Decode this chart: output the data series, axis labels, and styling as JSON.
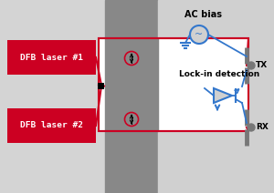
{
  "bg_left": "#d4d4d4",
  "bg_mid": "#888888",
  "bg_right": "#d0d0d0",
  "red": "#cc0022",
  "blue": "#3377cc",
  "black": "#111111",
  "white": "#ffffff",
  "laser1_label": "DFB laser #1",
  "laser2_label": "DFB laser #2",
  "tx_label": "TX",
  "rx_label": "RX",
  "ac_label": "AC bias",
  "lockin_label": "Lock-in detection",
  "fig_width": 3.0,
  "fig_height": 2.12,
  "dpi": 100
}
